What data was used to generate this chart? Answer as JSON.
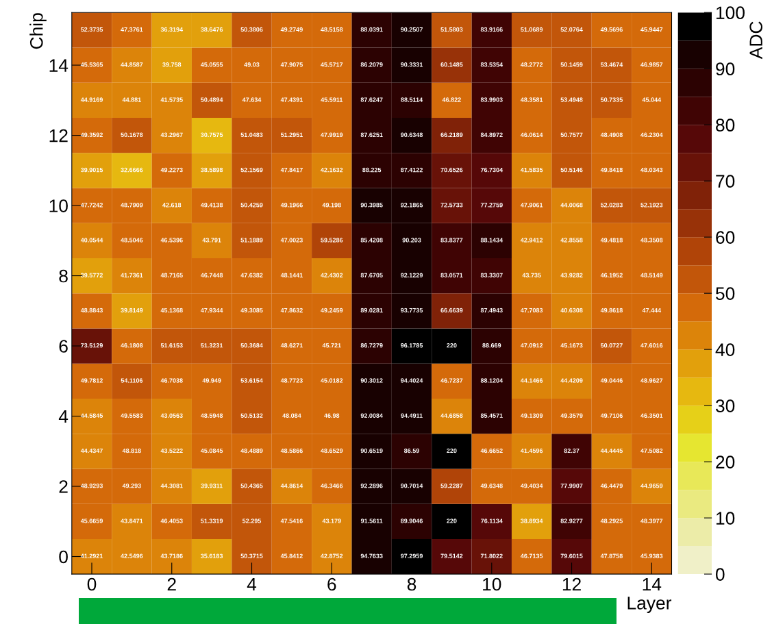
{
  "chart_data": {
    "type": "heatmap",
    "xlabel": "Layer",
    "ylabel": "Chip",
    "clabel": "ADC",
    "categories": [
      "0",
      null,
      "2",
      null,
      "4",
      null,
      "6",
      null,
      "8",
      null,
      "10",
      null,
      "12",
      null,
      "14"
    ],
    "y_categories": [
      null,
      "14",
      null,
      "12",
      null,
      "10",
      null,
      "8",
      null,
      "6",
      null,
      "4",
      null,
      "2",
      null,
      "0"
    ],
    "cells": [
      [
        52.3735,
        47.3761,
        36.3194,
        38.6476,
        50.3806,
        49.2749,
        48.5158,
        88.0391,
        90.2507,
        51.5803,
        83.9166,
        51.0689,
        52.0764,
        49.5696,
        45.9447
      ],
      [
        45.5365,
        44.8587,
        39.758,
        45.0555,
        49.03,
        47.9075,
        45.5717,
        86.2079,
        90.3331,
        60.1485,
        83.5354,
        48.2772,
        50.1459,
        53.4674,
        46.9857
      ],
      [
        44.9169,
        44.881,
        41.5735,
        50.4894,
        47.634,
        47.4391,
        45.5911,
        87.6247,
        88.5114,
        46.822,
        83.9903,
        48.3581,
        53.4948,
        50.7335,
        45.044
      ],
      [
        49.3592,
        50.1678,
        43.2967,
        30.7575,
        51.0483,
        51.2951,
        47.9919,
        87.6251,
        90.6348,
        66.2189,
        84.8972,
        46.0614,
        50.7577,
        48.4908,
        46.2304
      ],
      [
        39.9015,
        32.6666,
        49.2273,
        38.5898,
        52.1569,
        47.8417,
        42.1632,
        88.225,
        87.4122,
        70.6526,
        76.7304,
        41.5835,
        50.5146,
        49.8418,
        48.0343
      ],
      [
        47.7242,
        48.7909,
        42.618,
        49.4138,
        50.4259,
        49.1966,
        49.198,
        90.3985,
        92.1865,
        72.5733,
        77.2759,
        47.9061,
        44.0068,
        52.0283,
        52.1923
      ],
      [
        40.0544,
        48.5046,
        46.5396,
        43.791,
        51.1889,
        47.0023,
        59.5286,
        85.4208,
        90.203,
        83.8377,
        88.1434,
        42.9412,
        42.8558,
        49.4818,
        48.3508
      ],
      [
        39.5772,
        41.7361,
        48.7165,
        46.7448,
        47.6382,
        48.1441,
        42.4302,
        87.6705,
        92.1229,
        83.0571,
        83.3307,
        43.735,
        43.9282,
        46.1952,
        48.5149
      ],
      [
        48.8843,
        39.8149,
        45.1368,
        47.9344,
        49.3085,
        47.8632,
        49.2459,
        89.0281,
        93.7735,
        66.6639,
        87.4943,
        47.7083,
        40.6308,
        49.8618,
        47.444
      ],
      [
        73.5129,
        46.1808,
        51.6153,
        51.3231,
        50.3684,
        48.6271,
        45.721,
        86.7279,
        96.1785,
        220,
        88.669,
        47.0912,
        45.1673,
        50.0727,
        47.6016
      ],
      [
        49.7812,
        54.1106,
        46.7038,
        49.949,
        53.6154,
        48.7723,
        45.0182,
        90.3012,
        94.4024,
        46.7237,
        88.1204,
        44.1466,
        44.4209,
        49.0446,
        48.9627
      ],
      [
        44.5845,
        49.5583,
        43.0563,
        48.5948,
        50.5132,
        48.084,
        46.98,
        92.0084,
        94.4911,
        44.6858,
        85.4571,
        49.1309,
        49.3579,
        49.7106,
        46.3501
      ],
      [
        44.4347,
        48.818,
        43.5222,
        45.0845,
        48.4889,
        48.5866,
        48.6529,
        90.6519,
        86.59,
        220,
        46.6652,
        41.4596,
        82.37,
        44.4445,
        47.5082
      ],
      [
        48.9293,
        49.293,
        44.3081,
        39.9311,
        50.4365,
        44.8614,
        46.3466,
        92.2896,
        90.7014,
        59.2287,
        49.6348,
        49.4034,
        77.9907,
        46.4479,
        44.9659
      ],
      [
        45.6659,
        43.8471,
        46.4053,
        51.3319,
        52.295,
        47.5416,
        43.179,
        91.5611,
        89.9046,
        220,
        76.1134,
        38.8934,
        82.9277,
        48.2925,
        48.3977
      ],
      [
        41.2921,
        42.5496,
        43.7186,
        35.6183,
        50.3715,
        45.8412,
        42.8752,
        94.7633,
        97.2959,
        79.5142,
        71.8022,
        46.7135,
        79.6015,
        47.8758,
        45.9383
      ]
    ],
    "clim": [
      0,
      100
    ],
    "cticks": [
      0,
      10,
      20,
      30,
      40,
      50,
      60,
      70,
      80,
      90,
      100
    ],
    "data_labels": true
  }
}
